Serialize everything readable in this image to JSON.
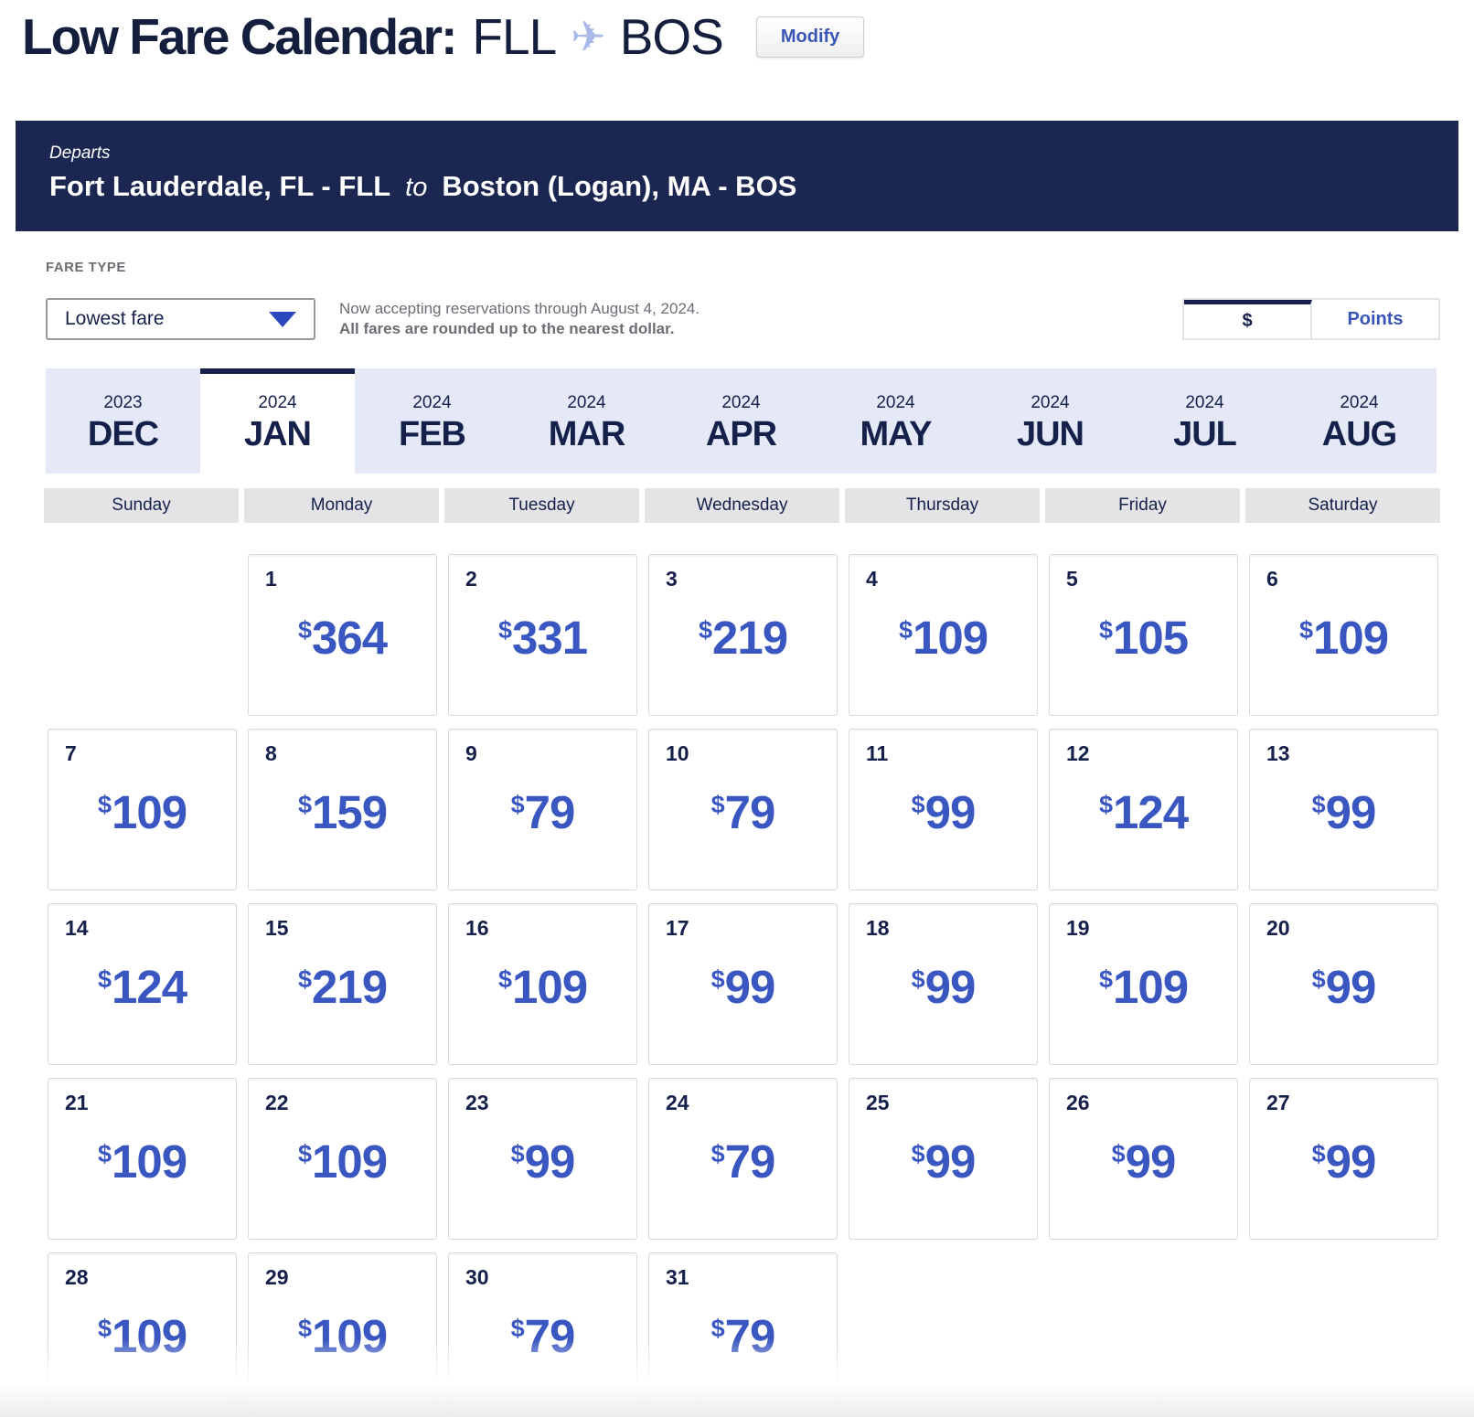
{
  "header": {
    "title": "Low Fare Calendar:",
    "origin_code": "FLL",
    "destination_code": "BOS",
    "plane_icon": "✈",
    "modify_label": "Modify"
  },
  "route_banner": {
    "departs_label": "Departs",
    "origin": "Fort Lauderdale, FL - FLL",
    "to_label": "to",
    "destination": "Boston (Logan), MA - BOS"
  },
  "fare_controls": {
    "fare_type_label": "FARE TYPE",
    "fare_type_value": "Lowest fare",
    "note_line1": "Now accepting reservations through August 4, 2024.",
    "note_line2": "All fares are rounded up to the nearest dollar.",
    "currency_toggle": {
      "dollar_label": "$",
      "points_label": "Points",
      "selected": "$"
    }
  },
  "month_tabs": [
    {
      "year": "2023",
      "month": "DEC",
      "active": false
    },
    {
      "year": "2024",
      "month": "JAN",
      "active": true
    },
    {
      "year": "2024",
      "month": "FEB",
      "active": false
    },
    {
      "year": "2024",
      "month": "MAR",
      "active": false
    },
    {
      "year": "2024",
      "month": "APR",
      "active": false
    },
    {
      "year": "2024",
      "month": "MAY",
      "active": false
    },
    {
      "year": "2024",
      "month": "JUN",
      "active": false
    },
    {
      "year": "2024",
      "month": "JUL",
      "active": false
    },
    {
      "year": "2024",
      "month": "AUG",
      "active": false
    }
  ],
  "calendar": {
    "currency_symbol": "$",
    "day_headers": [
      "Sunday",
      "Monday",
      "Tuesday",
      "Wednesday",
      "Thursday",
      "Friday",
      "Saturday"
    ],
    "weeks": [
      [
        null,
        {
          "day": "1",
          "fare": "364"
        },
        {
          "day": "2",
          "fare": "331"
        },
        {
          "day": "3",
          "fare": "219"
        },
        {
          "day": "4",
          "fare": "109"
        },
        {
          "day": "5",
          "fare": "105"
        },
        {
          "day": "6",
          "fare": "109"
        }
      ],
      [
        {
          "day": "7",
          "fare": "109"
        },
        {
          "day": "8",
          "fare": "159"
        },
        {
          "day": "9",
          "fare": "79"
        },
        {
          "day": "10",
          "fare": "79"
        },
        {
          "day": "11",
          "fare": "99"
        },
        {
          "day": "12",
          "fare": "124"
        },
        {
          "day": "13",
          "fare": "99"
        }
      ],
      [
        {
          "day": "14",
          "fare": "124"
        },
        {
          "day": "15",
          "fare": "219"
        },
        {
          "day": "16",
          "fare": "109"
        },
        {
          "day": "17",
          "fare": "99"
        },
        {
          "day": "18",
          "fare": "99"
        },
        {
          "day": "19",
          "fare": "109"
        },
        {
          "day": "20",
          "fare": "99"
        }
      ],
      [
        {
          "day": "21",
          "fare": "109"
        },
        {
          "day": "22",
          "fare": "109"
        },
        {
          "day": "23",
          "fare": "99"
        },
        {
          "day": "24",
          "fare": "79"
        },
        {
          "day": "25",
          "fare": "99"
        },
        {
          "day": "26",
          "fare": "99"
        },
        {
          "day": "27",
          "fare": "99"
        }
      ],
      [
        {
          "day": "28",
          "fare": "109"
        },
        {
          "day": "29",
          "fare": "109"
        },
        {
          "day": "30",
          "fare": "79"
        },
        {
          "day": "31",
          "fare": "79"
        },
        null,
        null,
        null
      ]
    ]
  },
  "colors": {
    "navy": "#15214b",
    "banner_navy": "#1b2750",
    "fare_blue": "#3a57c1",
    "link_blue": "#3a55b8",
    "caret_blue": "#2b49be",
    "plane_blue": "#a9b8e8",
    "tab_lavender": "#e4e8f7",
    "header_gray": "#e4e4e7",
    "cell_border": "#d9d9dc",
    "note_gray": "#6b6e74"
  }
}
